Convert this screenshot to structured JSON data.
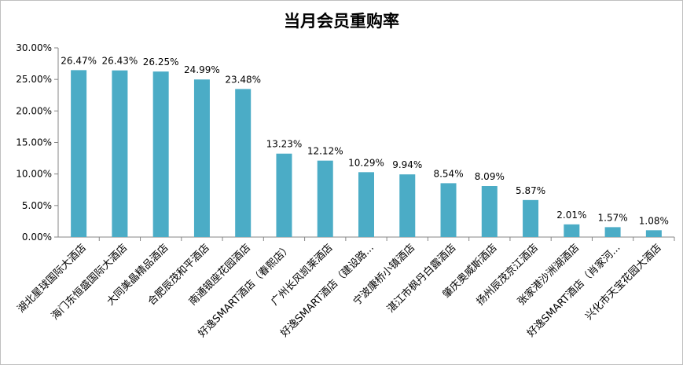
{
  "chart_data": {
    "type": "bar",
    "title": "当月会员重购率",
    "xlabel": "",
    "ylabel": "",
    "ylim": [
      0,
      30
    ],
    "yticks": [
      "0.00%",
      "5.00%",
      "10.00%",
      "15.00%",
      "20.00%",
      "25.00%",
      "30.00%"
    ],
    "grid": false,
    "legend": "none",
    "bar_color": "#4bacc6",
    "categories": [
      "湖北星球国际大酒店",
      "海门东恒盛国际大酒店",
      "大同美晶精品酒店",
      "合肥辰茂和平酒店",
      "南通银座花园酒店",
      "好逸SMART酒店（春熙店）",
      "广州长风凯莱酒店",
      "好逸SMART酒店（建设路...",
      "宁波康桥小镇酒店",
      "湛江市枫丹白露酒店",
      "肇庆奥威斯酒店",
      "扬州辰茂京江酒店",
      "张家港沙洲湖酒店",
      "好逸SMART酒店（肖家河...",
      "兴化市天宝花园大酒店"
    ],
    "values": [
      26.47,
      26.43,
      26.25,
      24.99,
      23.48,
      13.23,
      12.12,
      10.29,
      9.94,
      8.54,
      8.09,
      5.87,
      2.01,
      1.57,
      1.08
    ],
    "labels": [
      "26.47%",
      "26.43%",
      "26.25%",
      "24.99%",
      "23.48%",
      "13.23%",
      "12.12%",
      "10.29%",
      "9.94%",
      "8.54%",
      "8.09%",
      "5.87%",
      "2.01%",
      "1.57%",
      "1.08%"
    ]
  }
}
